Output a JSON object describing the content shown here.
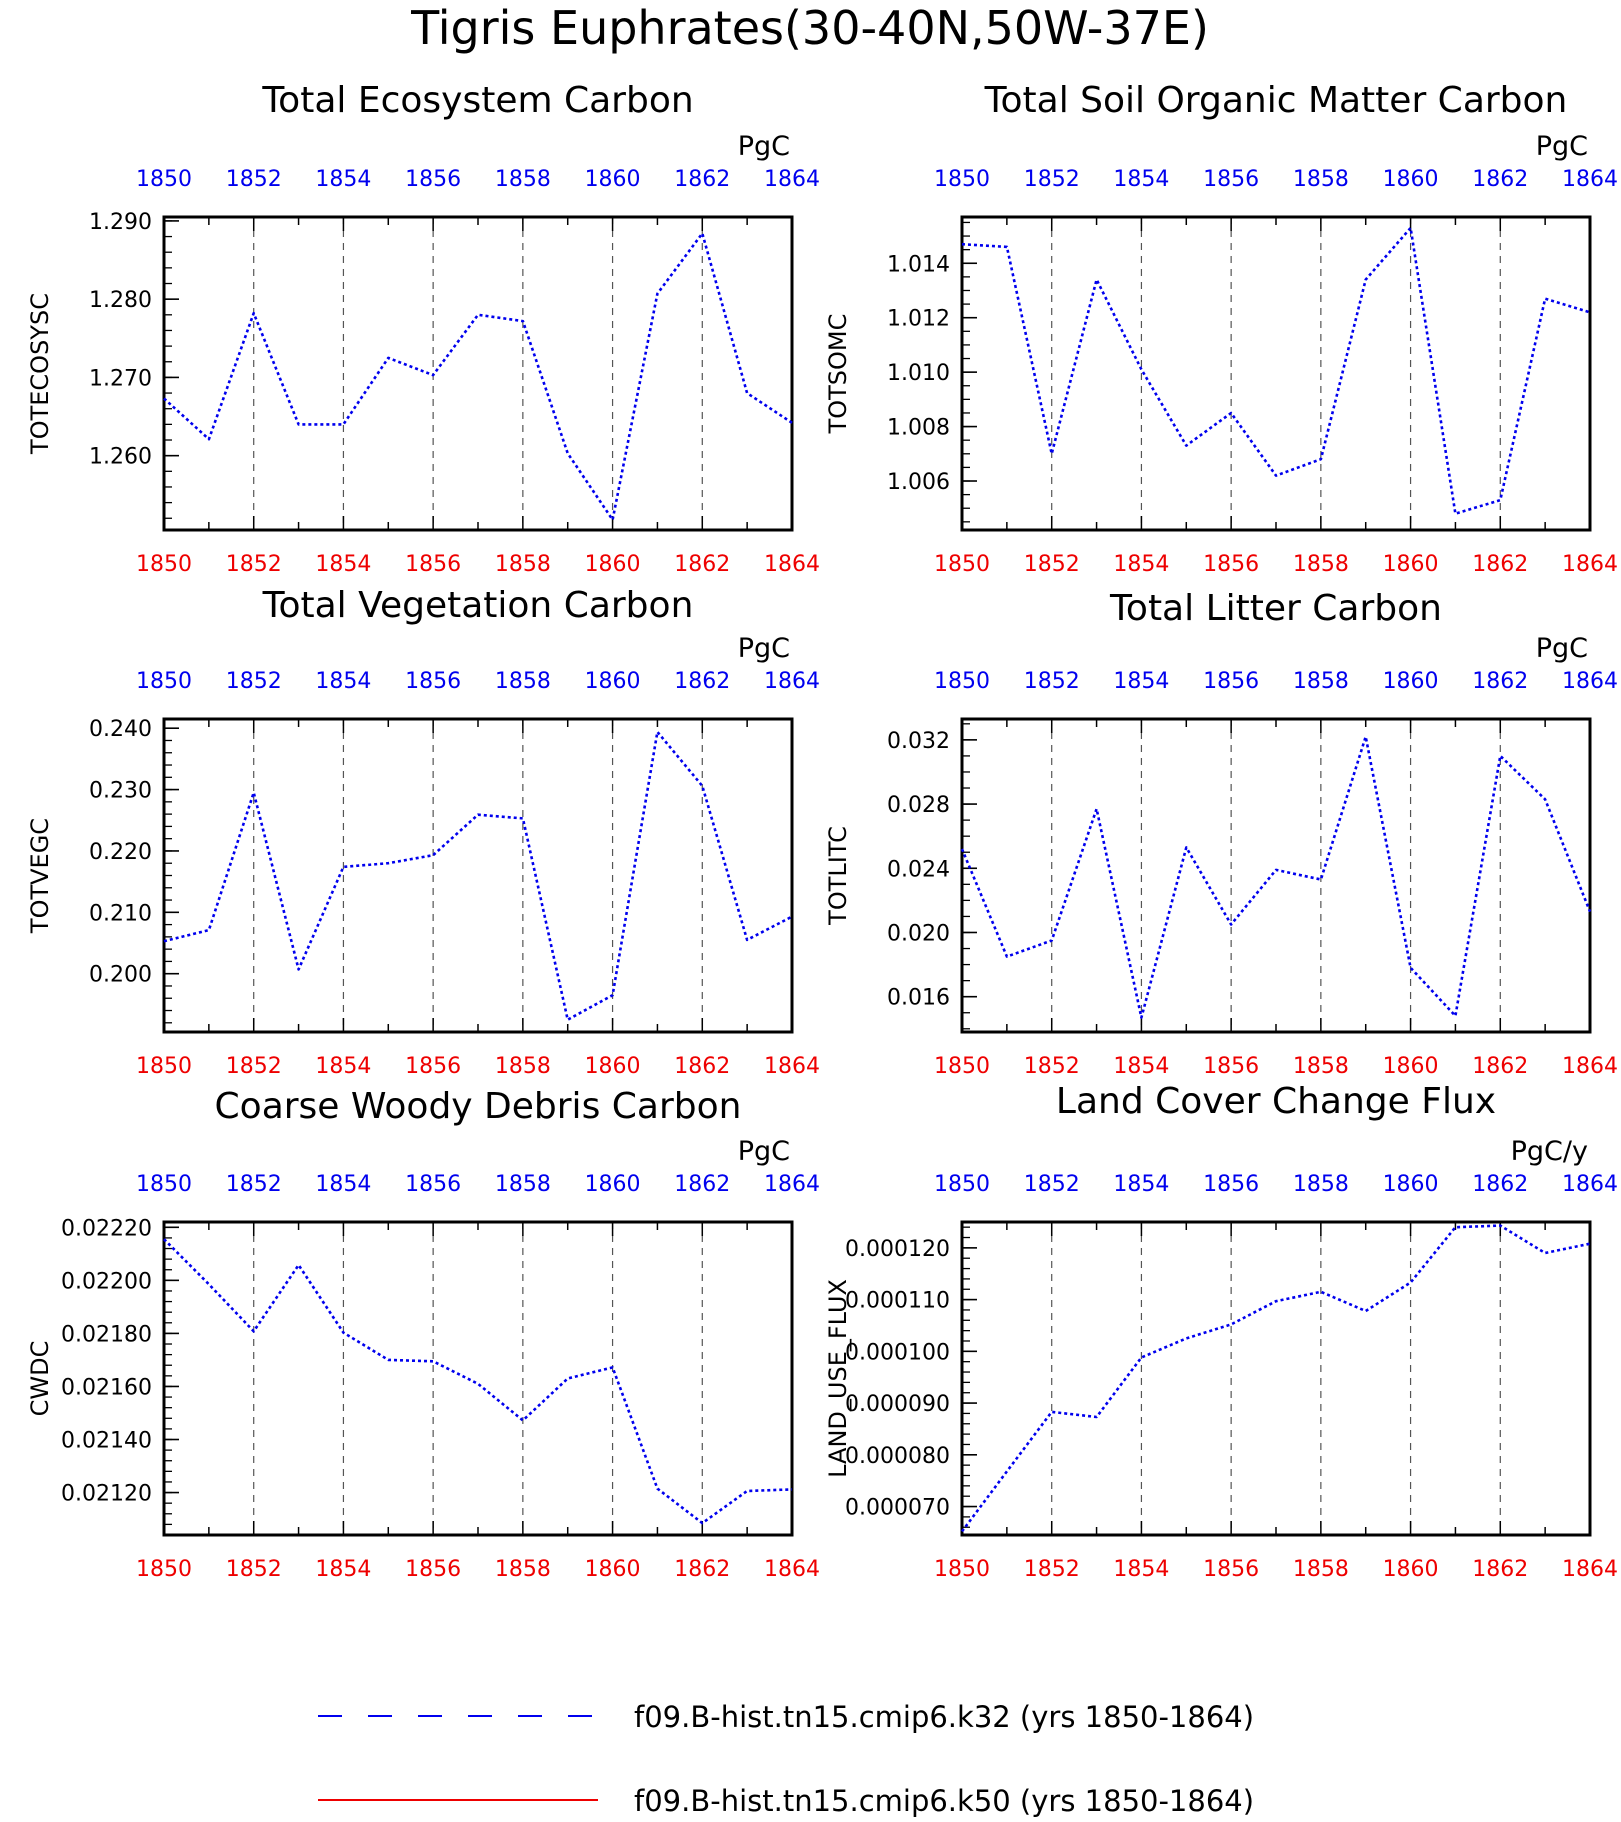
{
  "page_title": "Tigris Euphrates(30-40N,50W-37E)",
  "colors": {
    "series": "#0000ee",
    "ref": "#ee0000",
    "axis": "#000000",
    "grid": "#555555",
    "top_ticks": "#0000ee",
    "bottom_ticks": "#ee0000"
  },
  "legend": {
    "items": [
      {
        "label": "f09.B-hist.tn15.cmip6.k32 (yrs 1850-1864)",
        "color": "#0000ee",
        "style": "dashed"
      },
      {
        "label": "f09.B-hist.tn15.cmip6.k50 (yrs 1850-1864)",
        "color": "#ee0000",
        "style": "solid"
      }
    ]
  },
  "chart_data": [
    {
      "type": "line",
      "title": "Total Ecosystem Carbon",
      "units": "PgC",
      "ylabel": "TOTECOSYSC",
      "x": [
        1850,
        1851,
        1852,
        1853,
        1854,
        1855,
        1856,
        1857,
        1858,
        1859,
        1860,
        1861,
        1862,
        1863,
        1864
      ],
      "xlim": [
        1850,
        1864
      ],
      "xticks": [
        "1850",
        "1852",
        "1854",
        "1856",
        "1858",
        "1860",
        "1862",
        "1864"
      ],
      "ylim": [
        1.2505,
        1.2905
      ],
      "yticks": [
        1.26,
        1.27,
        1.28,
        1.29
      ],
      "ytick_labels": [
        "1.260",
        "1.270",
        "1.280",
        "1.290"
      ],
      "yminor_step": 0.002,
      "grid": "vertical-dashed",
      "series": [
        {
          "values": [
            1.2673,
            1.2621,
            1.2782,
            1.264,
            1.264,
            1.2725,
            1.2703,
            1.278,
            1.2772,
            1.2603,
            1.2518,
            1.2807,
            1.2884,
            1.268,
            1.2642
          ]
        }
      ]
    },
    {
      "type": "line",
      "title": "Total Soil Organic Matter Carbon",
      "units": "PgC",
      "ylabel": "TOTSOMC",
      "x": [
        1850,
        1851,
        1852,
        1853,
        1854,
        1855,
        1856,
        1857,
        1858,
        1859,
        1860,
        1861,
        1862,
        1863,
        1864
      ],
      "xlim": [
        1850,
        1864
      ],
      "xticks": [
        "1850",
        "1852",
        "1854",
        "1856",
        "1858",
        "1860",
        "1862",
        "1864"
      ],
      "ylim": [
        1.0042,
        1.0157
      ],
      "yticks": [
        1.006,
        1.008,
        1.01,
        1.012,
        1.014
      ],
      "ytick_labels": [
        "1.006",
        "1.008",
        "1.010",
        "1.012",
        "1.014"
      ],
      "yminor_step": 0.0005,
      "grid": "vertical-dashed",
      "series": [
        {
          "values": [
            1.0147,
            1.0146,
            1.007,
            1.0134,
            1.0101,
            1.0073,
            1.0085,
            1.0062,
            1.0068,
            1.0134,
            1.0153,
            1.0048,
            1.0053,
            1.0127,
            1.0122
          ]
        }
      ]
    },
    {
      "type": "line",
      "title": "Total Vegetation Carbon",
      "units": "PgC",
      "ylabel": "TOTVEGC",
      "x": [
        1850,
        1851,
        1852,
        1853,
        1854,
        1855,
        1856,
        1857,
        1858,
        1859,
        1860,
        1861,
        1862,
        1863,
        1864
      ],
      "xlim": [
        1850,
        1864
      ],
      "xticks": [
        "1850",
        "1852",
        "1854",
        "1856",
        "1858",
        "1860",
        "1862",
        "1864"
      ],
      "ylim": [
        0.1905,
        0.2415
      ],
      "yticks": [
        0.2,
        0.21,
        0.22,
        0.23,
        0.24
      ],
      "ytick_labels": [
        "0.200",
        "0.210",
        "0.220",
        "0.230",
        "0.240"
      ],
      "yminor_step": 0.002,
      "grid": "vertical-dashed",
      "series": [
        {
          "values": [
            0.2053,
            0.2071,
            0.2295,
            0.2007,
            0.2174,
            0.218,
            0.2193,
            0.2259,
            0.2253,
            0.1925,
            0.1965,
            0.2394,
            0.2306,
            0.2055,
            0.2093
          ]
        }
      ]
    },
    {
      "type": "line",
      "title": "Total Litter Carbon",
      "units": "PgC",
      "ylabel": "TOTLITC",
      "x": [
        1850,
        1851,
        1852,
        1853,
        1854,
        1855,
        1856,
        1857,
        1858,
        1859,
        1860,
        1861,
        1862,
        1863,
        1864
      ],
      "xlim": [
        1850,
        1864
      ],
      "xticks": [
        "1850",
        "1852",
        "1854",
        "1856",
        "1858",
        "1860",
        "1862",
        "1864"
      ],
      "ylim": [
        0.0138,
        0.0333
      ],
      "yticks": [
        0.016,
        0.02,
        0.024,
        0.028,
        0.032
      ],
      "ytick_labels": [
        "0.016",
        "0.020",
        "0.024",
        "0.028",
        "0.032"
      ],
      "yminor_step": 0.001,
      "grid": "vertical-dashed",
      "series": [
        {
          "values": [
            0.0252,
            0.0185,
            0.0195,
            0.0277,
            0.0147,
            0.0253,
            0.0205,
            0.0239,
            0.0233,
            0.0322,
            0.0178,
            0.0148,
            0.031,
            0.0283,
            0.0213
          ]
        }
      ]
    },
    {
      "type": "line",
      "title": "Coarse Woody Debris Carbon",
      "units": "PgC",
      "ylabel": "CWDC",
      "x": [
        1850,
        1851,
        1852,
        1853,
        1854,
        1855,
        1856,
        1857,
        1858,
        1859,
        1860,
        1861,
        1862,
        1863,
        1864
      ],
      "xlim": [
        1850,
        1864
      ],
      "xticks": [
        "1850",
        "1852",
        "1854",
        "1856",
        "1858",
        "1860",
        "1862",
        "1864"
      ],
      "ylim": [
        0.02104,
        0.02222
      ],
      "yticks": [
        0.0212,
        0.0214,
        0.0216,
        0.0218,
        0.022,
        0.0222
      ],
      "ytick_labels": [
        "0.02120",
        "0.02140",
        "0.02160",
        "0.02180",
        "0.02200",
        "0.02220"
      ],
      "yminor_step": 4e-05,
      "grid": "vertical-dashed",
      "series": [
        {
          "values": [
            0.022155,
            0.021985,
            0.021808,
            0.022058,
            0.021803,
            0.0217,
            0.021695,
            0.02161,
            0.021472,
            0.02163,
            0.021672,
            0.021215,
            0.021085,
            0.021206,
            0.021212
          ]
        }
      ]
    },
    {
      "type": "line",
      "title": "Land Cover Change Flux",
      "units": "PgC/y",
      "ylabel": "LAND_USE_FLUX",
      "x": [
        1850,
        1851,
        1852,
        1853,
        1854,
        1855,
        1856,
        1857,
        1858,
        1859,
        1860,
        1861,
        1862,
        1863,
        1864
      ],
      "xlim": [
        1850,
        1864
      ],
      "xticks": [
        "1850",
        "1852",
        "1854",
        "1856",
        "1858",
        "1860",
        "1862",
        "1864"
      ],
      "ylim": [
        6.45e-05,
        0.000125
      ],
      "yticks": [
        7e-05,
        8e-05,
        9e-05,
        0.0001,
        0.00011,
        0.00012
      ],
      "ytick_labels": [
        "0.000070",
        "0.000080",
        "0.000090",
        "0.000100",
        "0.000110",
        "0.000120"
      ],
      "yminor_step": 2e-06,
      "grid": "vertical-dashed",
      "series": [
        {
          "values": [
            6.52e-05,
            7.68e-05,
            8.83e-05,
            8.73e-05,
            9.88e-05,
            0.0001025,
            0.0001052,
            0.0001097,
            0.0001115,
            0.0001078,
            0.0001133,
            0.000124,
            0.0001243,
            0.000119,
            0.0001208
          ]
        }
      ]
    }
  ]
}
